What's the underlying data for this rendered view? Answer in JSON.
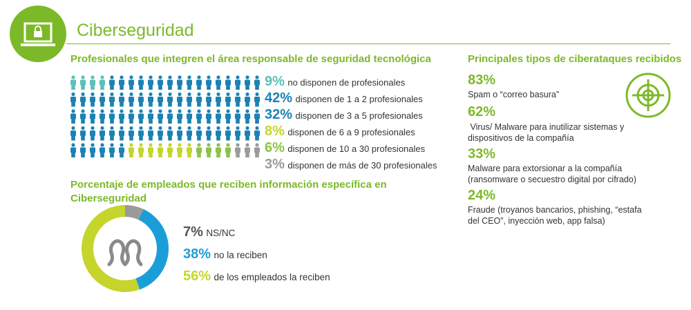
{
  "header": {
    "title": "Ciberseguridad",
    "icon": "laptop-lock-icon"
  },
  "colors": {
    "brand_green": "#7cb928",
    "teal": "#5bc0b8",
    "dark_blue": "#1a82b4",
    "lime": "#c5d52b",
    "green": "#8bc34a",
    "gray": "#9a9a9a",
    "cyan": "#1b9ed8"
  },
  "professionals": {
    "title": "Profesionales que integren el área responsable de seguridad tecnológica",
    "rows": [
      {
        "pct": "9%",
        "label": "no disponen de profesionales",
        "color": "#5bc0b8"
      },
      {
        "pct": "42%",
        "label": "disponen de 1 a 2 profesionales",
        "color": "#1a82b4"
      },
      {
        "pct": "32%",
        "label": "disponen de 3 a 5 profesionales",
        "color": "#1a82b4"
      },
      {
        "pct": "8%",
        "label": "disponen de 6 a 9 profesionales",
        "color": "#c5d52b"
      },
      {
        "pct": "6%",
        "label": "disponen de 10 a 30 profesionales",
        "color": "#8bc34a"
      },
      {
        "pct": "3%",
        "label": "disponen de más de 30 profesionales",
        "color": "#9a9a9a"
      }
    ]
  },
  "employees": {
    "title_line1": "Porcentaje de empleados que reciben información específica en",
    "title_line2": "Ciberseguridad",
    "icon": "people-icon",
    "legend": [
      {
        "pct": "7%",
        "label": "NS/NC",
        "color": "#7a7a7a"
      },
      {
        "pct": "38%",
        "label": "no la reciben",
        "color": "#1b9ed8"
      },
      {
        "pct": "56%",
        "label": "de los empleados la reciben",
        "color": "#c5d52b"
      }
    ],
    "donut_values": [
      7,
      38,
      56
    ]
  },
  "attacks": {
    "title": "Principales tipos de ciberataques recibidos",
    "icon": "target-icon",
    "items": [
      {
        "pct": "83%",
        "lines": [
          "Spam o “correo basura”"
        ]
      },
      {
        "pct": "62%",
        "lines": [
          " Virus/ Malware para inutilizar sistemas y",
          "dispositivos de la compañía"
        ]
      },
      {
        "pct": "33%",
        "lines": [
          "Malware para extorsionar a la compañía",
          "(ransomware o secuestro digital por cifrado)"
        ]
      },
      {
        "pct": "24%",
        "lines": [
          "Fraude (troyanos bancarios, phishing, “estafa",
          "del CEO”, inyección web, app falsa)"
        ]
      }
    ]
  }
}
